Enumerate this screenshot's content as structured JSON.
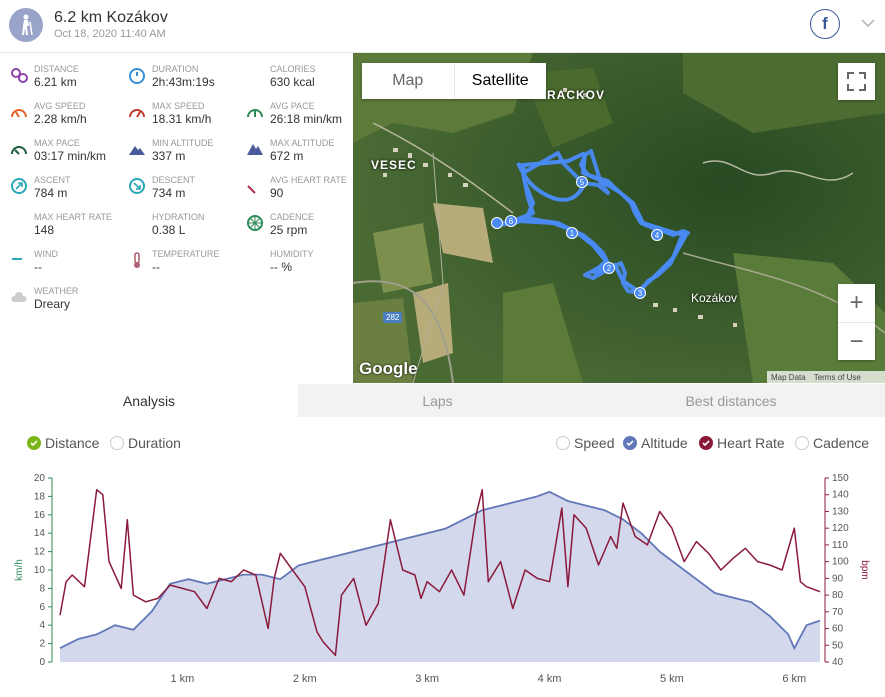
{
  "header": {
    "title": "6.2 km Kozákov",
    "date": "Oct 18, 2020 11:40 AM",
    "share_label": "f"
  },
  "stats": [
    {
      "icon": "distance-icon",
      "label": "DISTANCE",
      "value": "6.21 km",
      "color": "#8e44ad"
    },
    {
      "icon": "duration-icon",
      "label": "DURATION",
      "value": "2h:43m:19s",
      "color": "#3b8fd6"
    },
    {
      "icon": "calories-icon",
      "label": "CALORIES",
      "value": "630 kcal",
      "color": "#e8622a"
    },
    {
      "icon": "avg-speed-icon",
      "label": "AVG SPEED",
      "value": "2.28 km/h",
      "color": "#e8622a"
    },
    {
      "icon": "max-speed-icon",
      "label": "MAX SPEED",
      "value": "18.31 km/h",
      "color": "#c0392b"
    },
    {
      "icon": "avg-pace-icon",
      "label": "AVG PACE",
      "value": "26:18 min/km",
      "color": "#2e8b57"
    },
    {
      "icon": "max-pace-icon",
      "label": "MAX PACE",
      "value": "03:17 min/km",
      "color": "#1e5e3e"
    },
    {
      "icon": "min-altitude-icon",
      "label": "MIN ALTITUDE",
      "value": "337 m",
      "color": "#4a5a9a"
    },
    {
      "icon": "max-altitude-icon",
      "label": "MAX ALTITUDE",
      "value": "672 m",
      "color": "#4a5a9a"
    },
    {
      "icon": "ascent-icon",
      "label": "ASCENT",
      "value": "784 m",
      "color": "#2aa8b8"
    },
    {
      "icon": "descent-icon",
      "label": "DESCENT",
      "value": "734 m",
      "color": "#2aa8b8"
    },
    {
      "icon": "avg-heart-rate-icon",
      "label": "AVG HEART RATE",
      "value": "90",
      "color": "#b03050"
    },
    {
      "icon": "max-heart-rate-icon",
      "label": "MAX HEART RATE",
      "value": "148",
      "color": "#b03050"
    },
    {
      "icon": "hydration-icon",
      "label": "HYDRATION",
      "value": "0.38 L",
      "color": "#7aa6e8"
    },
    {
      "icon": "cadence-icon",
      "label": "CADENCE",
      "value": "25 rpm",
      "color": "#2e8b57"
    },
    {
      "icon": "wind-icon",
      "label": "WIND",
      "value": "--",
      "color": "#2aa8b8"
    },
    {
      "icon": "temperature-icon",
      "label": "TEMPERATURE",
      "value": "--",
      "color": "#b06070"
    },
    {
      "icon": "humidity-icon",
      "label": "HUMIDITY",
      "value": "-- %",
      "color": "#7aa6e8"
    },
    {
      "icon": "weather-icon",
      "label": "WEATHER",
      "value": "Dreary",
      "color": "#cccccc"
    }
  ],
  "map": {
    "map_label": "Map",
    "satellite_label": "Satellite",
    "zoom_in": "+",
    "zoom_out": "−",
    "place_vesec": "VESEC",
    "place_rackov": "RACKOV",
    "place_kozakov": "Kozákov",
    "road_number": "282",
    "google": "Google",
    "map_data": "Map Data",
    "terms": "Terms of Use",
    "markers": [
      "1",
      "2",
      "3",
      "4",
      "5",
      "6"
    ]
  },
  "tabs": {
    "analysis": "Analysis",
    "laps": "Laps",
    "best_distances": "Best distances"
  },
  "x_mode": {
    "distance": "Distance",
    "duration": "Duration"
  },
  "metrics": {
    "speed": "Speed",
    "altitude": "Altitude",
    "heart_rate": "Heart Rate",
    "cadence": "Cadence"
  },
  "colors": {
    "altitude": "#6177b8",
    "altitude_fill": "#d3d8ec",
    "heart_rate": "#8b1a3a",
    "speed_axis": "#2e8b57",
    "route": "#4a8af4",
    "checked_green": "#7cb518"
  },
  "chart_data": {
    "type": "line",
    "x_unit": "km",
    "x_range": [
      0,
      6.21
    ],
    "x_ticks": [
      1,
      2,
      3,
      4,
      5,
      6
    ],
    "x_tick_labels": [
      "1 km",
      "2 km",
      "3 km",
      "4 km",
      "5 km",
      "6 km"
    ],
    "left_axis": {
      "label": "km/h",
      "range": [
        0,
        20
      ],
      "ticks": [
        0,
        2,
        4,
        6,
        8,
        10,
        12,
        14,
        16,
        18,
        20
      ]
    },
    "right_axis": {
      "label": "bpm",
      "range": [
        40,
        150
      ],
      "ticks": [
        40,
        50,
        60,
        70,
        80,
        90,
        100,
        110,
        120,
        130,
        140,
        150
      ]
    },
    "series": [
      {
        "name": "Altitude",
        "axis": "left",
        "style": "area",
        "x": [
          0.0,
          0.15,
          0.3,
          0.45,
          0.6,
          0.75,
          0.9,
          1.05,
          1.2,
          1.35,
          1.5,
          1.65,
          1.8,
          1.95,
          2.1,
          2.25,
          2.4,
          2.55,
          2.7,
          2.85,
          3.0,
          3.15,
          3.3,
          3.45,
          3.6,
          3.75,
          3.9,
          4.0,
          4.15,
          4.3,
          4.45,
          4.6,
          4.75,
          4.9,
          5.05,
          5.2,
          5.35,
          5.5,
          5.65,
          5.8,
          5.95,
          6.0,
          6.1,
          6.21
        ],
        "values": [
          1.5,
          2.5,
          3.0,
          4.0,
          3.5,
          5.5,
          8.5,
          9.0,
          8.5,
          9.0,
          9.5,
          9.5,
          9.0,
          10.5,
          11.0,
          11.5,
          12.0,
          12.5,
          13.0,
          13.5,
          14.0,
          14.5,
          15.5,
          16.5,
          17.0,
          17.5,
          18.0,
          18.5,
          17.5,
          17.0,
          16.5,
          15.5,
          14.0,
          12.0,
          10.5,
          9.0,
          7.5,
          7.0,
          6.5,
          5.0,
          3.0,
          1.5,
          4.0,
          4.5
        ]
      },
      {
        "name": "Heart Rate",
        "axis": "right",
        "style": "line",
        "x": [
          0.0,
          0.05,
          0.1,
          0.2,
          0.3,
          0.35,
          0.4,
          0.5,
          0.55,
          0.6,
          0.7,
          0.8,
          0.9,
          1.0,
          1.1,
          1.2,
          1.3,
          1.4,
          1.5,
          1.6,
          1.7,
          1.75,
          1.8,
          1.9,
          2.0,
          2.1,
          2.15,
          2.2,
          2.25,
          2.3,
          2.4,
          2.5,
          2.6,
          2.7,
          2.8,
          2.9,
          2.95,
          3.0,
          3.1,
          3.2,
          3.3,
          3.4,
          3.45,
          3.5,
          3.6,
          3.7,
          3.8,
          3.9,
          4.0,
          4.1,
          4.15,
          4.2,
          4.3,
          4.4,
          4.5,
          4.55,
          4.6,
          4.7,
          4.8,
          4.9,
          5.0,
          5.1,
          5.2,
          5.3,
          5.4,
          5.5,
          5.6,
          5.7,
          5.8,
          5.9,
          6.0,
          6.05,
          6.1,
          6.21
        ],
        "values": [
          68,
          88,
          92,
          85,
          143,
          140,
          100,
          84,
          125,
          80,
          76,
          78,
          86,
          84,
          82,
          72,
          90,
          88,
          95,
          92,
          60,
          90,
          105,
          95,
          85,
          58,
          52,
          48,
          44,
          80,
          90,
          62,
          75,
          125,
          95,
          92,
          78,
          88,
          82,
          95,
          80,
          128,
          143,
          88,
          100,
          72,
          95,
          90,
          88,
          132,
          85,
          128,
          120,
          98,
          115,
          108,
          135,
          115,
          110,
          130,
          120,
          100,
          112,
          105,
          95,
          102,
          108,
          100,
          98,
          95,
          120,
          88,
          85,
          82
        ]
      }
    ]
  }
}
